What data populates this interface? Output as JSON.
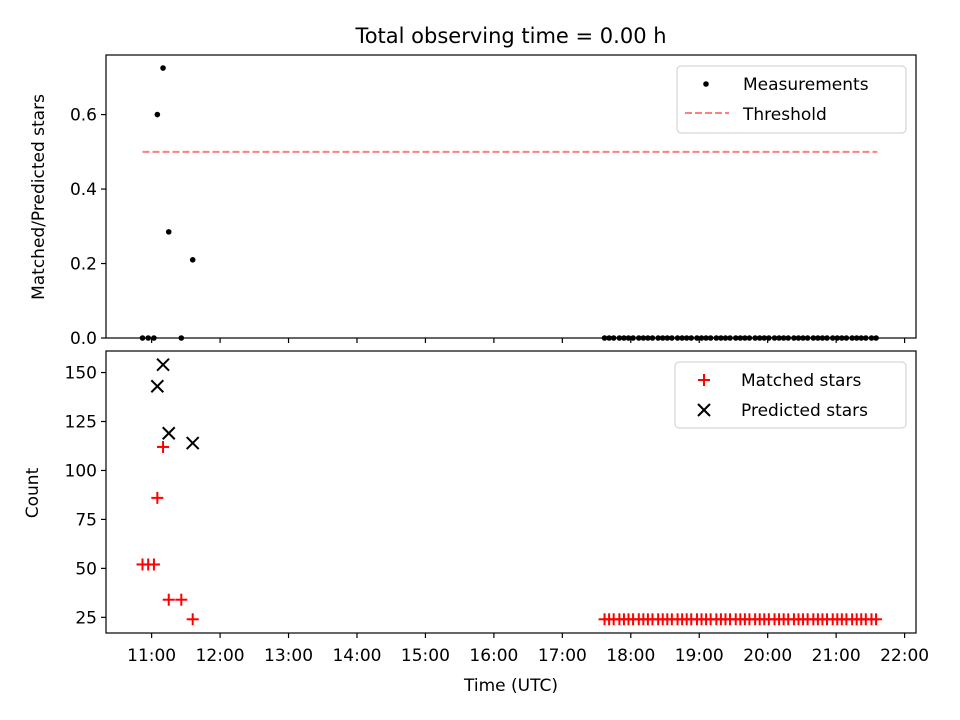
{
  "figure": {
    "title": "Total observing time = 0.00 h"
  },
  "chart_data": [
    {
      "type": "scatter",
      "ylabel": "Matched/Predicted stars",
      "ylim": [
        0,
        0.76
      ],
      "xlim": [
        "10:20",
        "22:10"
      ],
      "yticks": [
        0.0,
        0.2,
        0.4,
        0.6
      ],
      "ytick_labels": [
        "0.0",
        "0.2",
        "0.4",
        "0.6"
      ],
      "legend": {
        "placement": "top-right",
        "entries": [
          {
            "label": "Measurements",
            "marker": "dot",
            "color": "#000000"
          },
          {
            "label": "Threshold",
            "marker": "dashed-line",
            "color": "#ff7f7f"
          }
        ]
      },
      "series": [
        {
          "name": "Measurements",
          "marker": "dot",
          "color": "#000000",
          "points": [
            [
              "10:52",
              0
            ],
            [
              "10:57",
              0
            ],
            [
              "11:02",
              0
            ],
            [
              "11:05",
              0.6
            ],
            [
              "11:10",
              0.725
            ],
            [
              "11:15",
              0.285
            ],
            [
              "11:26",
              0
            ],
            [
              "11:36",
              0.21
            ],
            [
              "17:37",
              0
            ],
            [
              "17:41",
              0
            ],
            [
              "17:45",
              0
            ],
            [
              "17:50",
              0
            ],
            [
              "17:54",
              0
            ],
            [
              "17:58",
              0
            ],
            [
              "18:02",
              0
            ],
            [
              "18:07",
              0
            ],
            [
              "18:11",
              0
            ],
            [
              "18:15",
              0
            ],
            [
              "18:19",
              0
            ],
            [
              "18:24",
              0
            ],
            [
              "18:28",
              0
            ],
            [
              "18:32",
              0
            ],
            [
              "18:36",
              0
            ],
            [
              "18:41",
              0
            ],
            [
              "18:45",
              0
            ],
            [
              "18:49",
              0
            ],
            [
              "18:53",
              0
            ],
            [
              "18:58",
              0
            ],
            [
              "19:02",
              0
            ],
            [
              "19:06",
              0
            ],
            [
              "19:10",
              0
            ],
            [
              "19:15",
              0
            ],
            [
              "19:19",
              0
            ],
            [
              "19:23",
              0
            ],
            [
              "19:27",
              0
            ],
            [
              "19:32",
              0
            ],
            [
              "19:36",
              0
            ],
            [
              "19:40",
              0
            ],
            [
              "19:44",
              0
            ],
            [
              "19:49",
              0
            ],
            [
              "19:53",
              0
            ],
            [
              "19:57",
              0
            ],
            [
              "20:01",
              0
            ],
            [
              "20:06",
              0
            ],
            [
              "20:10",
              0
            ],
            [
              "20:14",
              0
            ],
            [
              "20:18",
              0
            ],
            [
              "20:23",
              0
            ],
            [
              "20:27",
              0
            ],
            [
              "20:31",
              0
            ],
            [
              "20:35",
              0
            ],
            [
              "20:40",
              0
            ],
            [
              "20:44",
              0
            ],
            [
              "20:48",
              0
            ],
            [
              "20:52",
              0
            ],
            [
              "20:57",
              0
            ],
            [
              "21:01",
              0
            ],
            [
              "21:05",
              0
            ],
            [
              "21:09",
              0
            ],
            [
              "21:14",
              0
            ],
            [
              "21:18",
              0
            ],
            [
              "21:22",
              0
            ],
            [
              "21:26",
              0
            ],
            [
              "21:31",
              0
            ],
            [
              "21:35",
              0
            ]
          ]
        },
        {
          "name": "Threshold",
          "marker": "dashed-line",
          "color": "#ff7f7f",
          "points": [
            [
              "10:52",
              0.5
            ],
            [
              "21:36",
              0.5
            ]
          ]
        }
      ]
    },
    {
      "type": "scatter",
      "xlabel": "Time (UTC)",
      "ylabel": "Count",
      "ylim": [
        17,
        161
      ],
      "xlim": [
        "10:20",
        "22:10"
      ],
      "yticks": [
        25,
        50,
        75,
        100,
        125,
        150
      ],
      "ytick_labels": [
        "25",
        "50",
        "75",
        "100",
        "125",
        "150"
      ],
      "xticks": [
        "11:00",
        "12:00",
        "13:00",
        "14:00",
        "15:00",
        "16:00",
        "17:00",
        "18:00",
        "19:00",
        "20:00",
        "21:00",
        "22:00"
      ],
      "xtick_labels": [
        "11:00",
        "12:00",
        "13:00",
        "14:00",
        "15:00",
        "16:00",
        "17:00",
        "18:00",
        "19:00",
        "20:00",
        "21:00",
        "22:00"
      ],
      "legend": {
        "placement": "top-right",
        "entries": [
          {
            "label": "Matched stars",
            "marker": "plus",
            "color": "#ff0000"
          },
          {
            "label": "Predicted stars",
            "marker": "x",
            "color": "#000000"
          }
        ]
      },
      "series": [
        {
          "name": "Matched stars",
          "marker": "plus",
          "color": "#ff0000",
          "points": [
            [
              "10:52",
              52
            ],
            [
              "10:57",
              52
            ],
            [
              "11:02",
              52
            ],
            [
              "11:05",
              86
            ],
            [
              "11:10",
              112
            ],
            [
              "11:15",
              34
            ],
            [
              "11:26",
              34
            ],
            [
              "11:36",
              24
            ],
            [
              "17:37",
              24
            ],
            [
              "17:41",
              24
            ],
            [
              "17:45",
              24
            ],
            [
              "17:50",
              24
            ],
            [
              "17:54",
              24
            ],
            [
              "17:58",
              24
            ],
            [
              "18:02",
              24
            ],
            [
              "18:07",
              24
            ],
            [
              "18:11",
              24
            ],
            [
              "18:15",
              24
            ],
            [
              "18:19",
              24
            ],
            [
              "18:24",
              24
            ],
            [
              "18:28",
              24
            ],
            [
              "18:32",
              24
            ],
            [
              "18:36",
              24
            ],
            [
              "18:41",
              24
            ],
            [
              "18:45",
              24
            ],
            [
              "18:49",
              24
            ],
            [
              "18:53",
              24
            ],
            [
              "18:58",
              24
            ],
            [
              "19:02",
              24
            ],
            [
              "19:06",
              24
            ],
            [
              "19:10",
              24
            ],
            [
              "19:15",
              24
            ],
            [
              "19:19",
              24
            ],
            [
              "19:23",
              24
            ],
            [
              "19:27",
              24
            ],
            [
              "19:32",
              24
            ],
            [
              "19:36",
              24
            ],
            [
              "19:40",
              24
            ],
            [
              "19:44",
              24
            ],
            [
              "19:49",
              24
            ],
            [
              "19:53",
              24
            ],
            [
              "19:57",
              24
            ],
            [
              "20:01",
              24
            ],
            [
              "20:06",
              24
            ],
            [
              "20:10",
              24
            ],
            [
              "20:14",
              24
            ],
            [
              "20:18",
              24
            ],
            [
              "20:23",
              24
            ],
            [
              "20:27",
              24
            ],
            [
              "20:31",
              24
            ],
            [
              "20:35",
              24
            ],
            [
              "20:40",
              24
            ],
            [
              "20:44",
              24
            ],
            [
              "20:48",
              24
            ],
            [
              "20:52",
              24
            ],
            [
              "20:57",
              24
            ],
            [
              "21:01",
              24
            ],
            [
              "21:05",
              24
            ],
            [
              "21:09",
              24
            ],
            [
              "21:14",
              24
            ],
            [
              "21:18",
              24
            ],
            [
              "21:22",
              24
            ],
            [
              "21:26",
              24
            ],
            [
              "21:31",
              24
            ],
            [
              "21:35",
              24
            ]
          ]
        },
        {
          "name": "Predicted stars",
          "marker": "x",
          "color": "#000000",
          "points": [
            [
              "11:05",
              143
            ],
            [
              "11:10",
              154
            ],
            [
              "11:15",
              119
            ],
            [
              "11:36",
              114
            ]
          ]
        }
      ]
    }
  ]
}
